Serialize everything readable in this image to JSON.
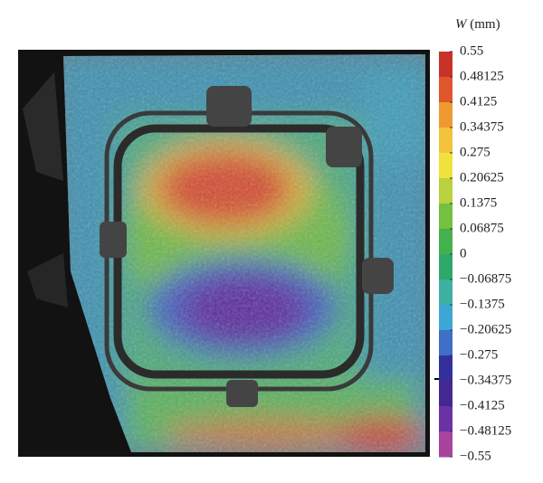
{
  "colorbar": {
    "title_symbol": "W",
    "title_unit": "(mm)",
    "ticks": [
      0.55,
      0.48125,
      0.4125,
      0.34375,
      0.275,
      0.20625,
      0.1375,
      0.06875,
      0,
      {
        "value": -0.06875,
        "label": "−0.06875"
      },
      {
        "value": -0.1375,
        "label": "−0.1375"
      },
      {
        "value": -0.20625,
        "label": "−0.20625"
      },
      {
        "value": -0.275,
        "label": "−0.275"
      },
      {
        "value": -0.34375,
        "label": "−0.34375"
      },
      {
        "value": -0.4125,
        "label": "−0.4125"
      },
      {
        "value": -0.48125,
        "label": "−0.48125"
      },
      {
        "value": -0.55,
        "label": "−0.55"
      }
    ],
    "colors": [
      "#c8322a",
      "#e0562c",
      "#ee9a30",
      "#f3c33c",
      "#f0e23c",
      "#b9d23e",
      "#74c040",
      "#44b04e",
      "#2fa86a",
      "#3fb0a2",
      "#3ea6d6",
      "#3f6fc6",
      "#33309e",
      "#422890",
      "#6a32a2",
      "#a8449e"
    ]
  }
}
